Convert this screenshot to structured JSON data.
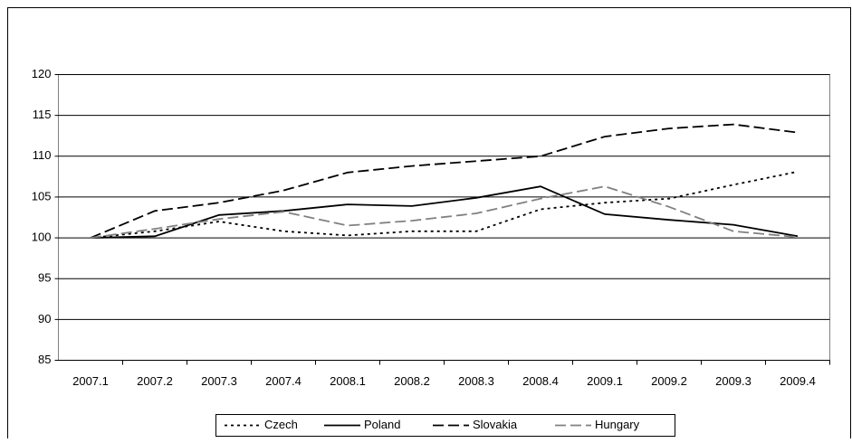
{
  "chart_data": {
    "type": "line",
    "categories": [
      "2007.1",
      "2007.2",
      "2007.3",
      "2007.4",
      "2008.1",
      "2008.2",
      "2008.3",
      "2008.4",
      "2009.1",
      "2009.2",
      "2009.3",
      "2009.4"
    ],
    "series": [
      {
        "name": "Czech",
        "color": "#000000",
        "linestyle": "dotted",
        "values": [
          100,
          100.8,
          102,
          100.8,
          100.3,
          100.8,
          100.8,
          103.5,
          104.3,
          104.8,
          106.5,
          108.1
        ]
      },
      {
        "name": "Poland",
        "color": "#000000",
        "linestyle": "solid",
        "values": [
          100,
          100.2,
          102.8,
          103.3,
          104.1,
          103.9,
          104.9,
          106.3,
          102.9,
          102.2,
          101.6,
          100.2
        ]
      },
      {
        "name": "Slovakia",
        "color": "#000000",
        "linestyle": "dashed",
        "values": [
          100,
          103.3,
          104.3,
          105.8,
          108,
          108.8,
          109.4,
          110,
          112.4,
          113.4,
          113.9,
          112.9
        ]
      },
      {
        "name": "Hungary",
        "color": "#808080",
        "linestyle": "dashed",
        "values": [
          100,
          101.1,
          102.3,
          103.2,
          101.5,
          102.1,
          103,
          104.8,
          106.3,
          103.8,
          100.8,
          100.1
        ]
      }
    ],
    "ylim": [
      85,
      120
    ],
    "yticks": [
      85,
      90,
      95,
      100,
      105,
      110,
      115,
      120
    ],
    "grid": true,
    "legend": "bottom"
  }
}
